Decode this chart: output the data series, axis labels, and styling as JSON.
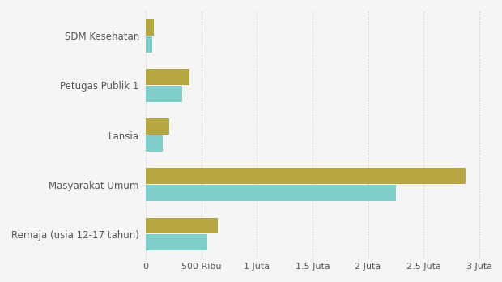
{
  "categories": [
    "SDM Kesehatan",
    "Petugas Publik 1",
    "Lansia",
    "Masyarakat Umum",
    "Remaja (usia 12-17 tahun)"
  ],
  "target_values": [
    75000,
    390000,
    210000,
    2880000,
    650000
  ],
  "realisasi_values": [
    55000,
    330000,
    155000,
    2250000,
    550000
  ],
  "color_target": "#b5a642",
  "color_realisasi": "#7ececa",
  "background_color": "#f5f5f5",
  "plot_bg_color": "#f5f5f5",
  "bar_height": 0.32,
  "bar_gap": 0.02,
  "xlim": [
    0,
    3100000
  ],
  "xtick_positions": [
    0,
    500000,
    1000000,
    1500000,
    2000000,
    2500000,
    3000000
  ],
  "xtick_labels": [
    "0",
    "500 Ribu",
    "1 Juta",
    "1.5 Juta",
    "2 Juta",
    "2.5 Juta",
    "3 Juta"
  ],
  "grid_color": "#cccccc",
  "label_color": "#555555",
  "ylabel_fontsize": 8.5,
  "xlabel_fontsize": 8
}
